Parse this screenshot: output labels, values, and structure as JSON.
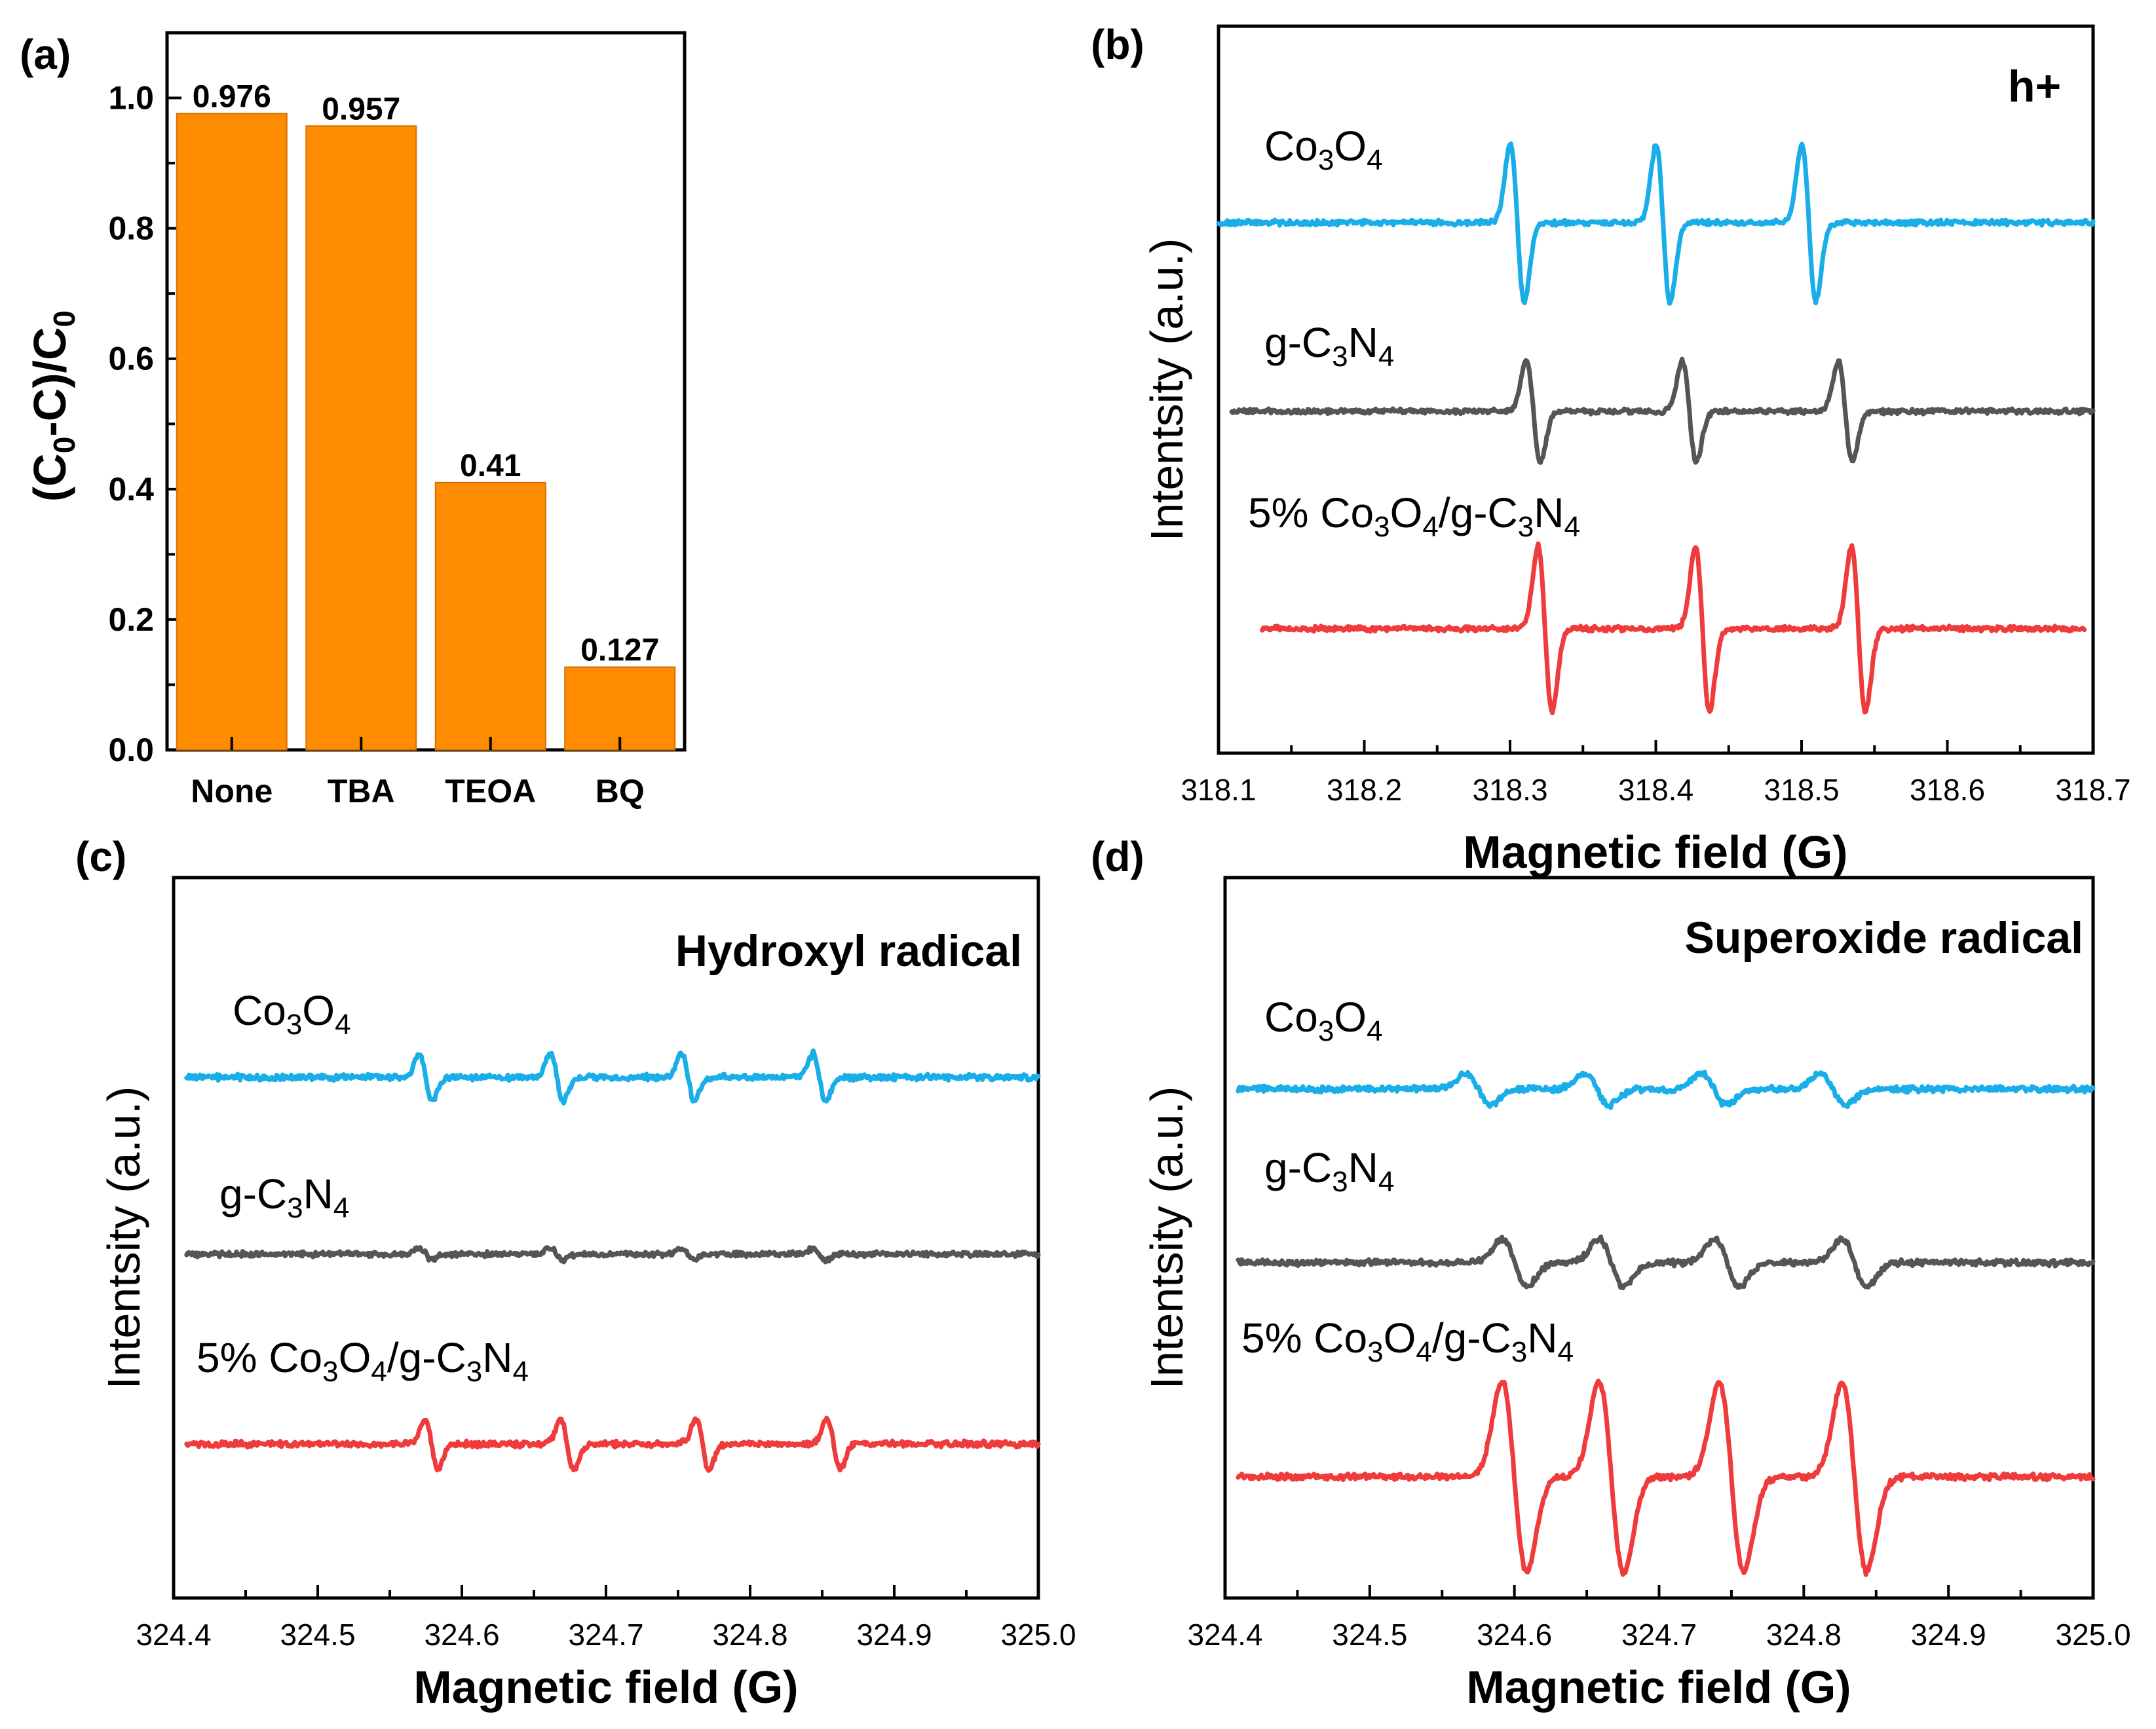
{
  "colors": {
    "bar": "#ff8c00",
    "co3o4": "#1aaee8",
    "gc3n4": "#555555",
    "composite": "#ef3b3b"
  },
  "chart_data": [
    {
      "id": "a",
      "panel_label": "(a)",
      "type": "bar",
      "categories": [
        "None",
        "TBA",
        "TEOA",
        "BQ"
      ],
      "values": [
        0.976,
        0.957,
        0.41,
        0.127
      ],
      "data_labels": [
        "0.976",
        "0.957",
        "0.41",
        "0.127"
      ],
      "xlabel": "",
      "ylabel": "(C0-C)/C0",
      "ylim": [
        0,
        1.1
      ],
      "yticks": [
        "0.0",
        "0.2",
        "0.4",
        "0.6",
        "0.8",
        "1.0"
      ]
    },
    {
      "id": "b",
      "panel_label": "(b)",
      "type": "line",
      "title": "h+",
      "xlabel": "Magnetic field (G)",
      "ylabel": "Intentsity (a.u.)",
      "xlim": [
        318.1,
        318.7
      ],
      "xticks": [
        "318.1",
        "318.2",
        "318.3",
        "318.4",
        "318.5",
        "318.6",
        "318.7"
      ],
      "series": [
        {
          "name": "Co3O4",
          "color_key": "co3o4",
          "peaks": [
            318.305,
            318.405,
            318.505
          ],
          "amplitude": 1.0
        },
        {
          "name": "g-C3N4",
          "color_key": "gc3n4",
          "peaks": [
            318.316,
            318.423,
            318.53
          ],
          "amplitude": 0.64
        },
        {
          "name": "5% Co3O4/g-C3N4",
          "color_key": "composite",
          "peaks": [
            318.324,
            318.432,
            318.539
          ],
          "amplitude": 1.05
        }
      ]
    },
    {
      "id": "c",
      "panel_label": "(c)",
      "type": "line",
      "title": "Hydroxyl radical",
      "xlabel": "Magnetic field (G)",
      "ylabel": "Intentsity (a.u.)",
      "xlim": [
        324.4,
        325.0
      ],
      "xticks": [
        "324.4",
        "324.5",
        "324.6",
        "324.7",
        "324.8",
        "324.9",
        "325.0"
      ],
      "series": [
        {
          "name": "Co3O4",
          "color_key": "co3o4",
          "peaks": [
            324.575,
            324.666,
            324.757,
            324.848
          ],
          "amplitude": 0.3
        },
        {
          "name": "g-C3N4",
          "color_key": "gc3n4",
          "peaks": [
            324.575,
            324.666,
            324.757,
            324.848
          ],
          "amplitude": 0.07
        },
        {
          "name": "5% Co3O4/g-C3N4",
          "color_key": "composite",
          "peaks": [
            324.579,
            324.673,
            324.767,
            324.858
          ],
          "amplitude": 0.32
        }
      ]
    },
    {
      "id": "d",
      "panel_label": "(d)",
      "type": "line",
      "title": "Superoxide radical",
      "xlabel": "Magnetic field (G)",
      "ylabel": "Intentsity (a.u.)",
      "xlim": [
        324.4,
        325.0
      ],
      "xticks": [
        "324.4",
        "324.5",
        "324.6",
        "324.7",
        "324.8",
        "324.9",
        "325.0"
      ],
      "series": [
        {
          "name": "Co3O4",
          "color_key": "co3o4",
          "peaks": [
            324.575,
            324.657,
            324.738,
            324.82
          ],
          "amplitude": 0.2
        },
        {
          "name": "g-C3N4",
          "color_key": "gc3n4",
          "peaks": [
            324.6,
            324.667,
            324.747,
            324.835
          ],
          "amplitude": 0.3
        },
        {
          "name": "5% Co3O4/g-C3N4",
          "color_key": "composite",
          "peaks": [
            324.6,
            324.667,
            324.75,
            324.835
          ],
          "amplitude": 1.0
        }
      ]
    }
  ]
}
